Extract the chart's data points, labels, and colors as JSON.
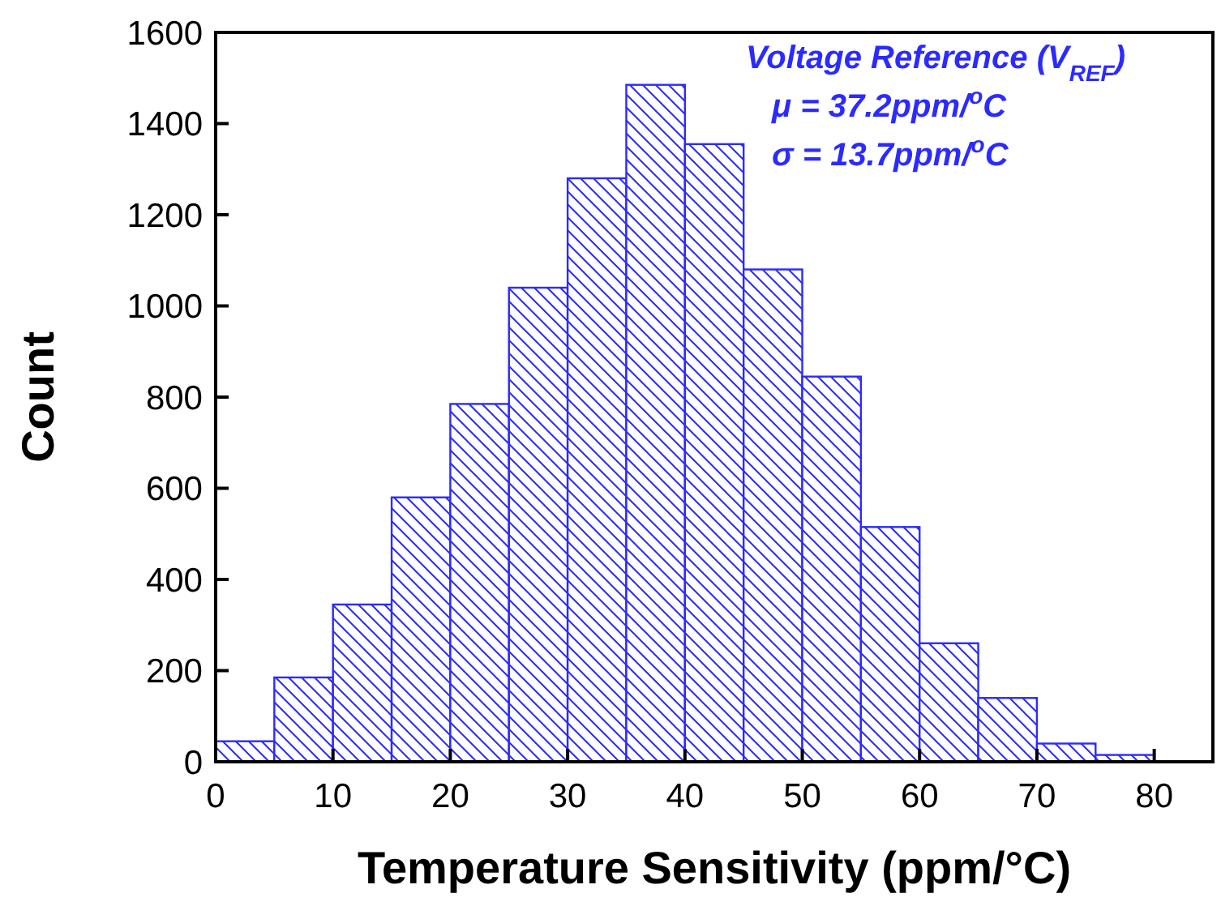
{
  "chart_data": {
    "type": "histogram",
    "xlabel": "Temperature Sensitivity (ppm/°C)",
    "ylabel": "Count",
    "bins": [
      0,
      5,
      10,
      15,
      20,
      25,
      30,
      35,
      40,
      45,
      50,
      55,
      60,
      65,
      70,
      75,
      80
    ],
    "values": [
      45,
      185,
      345,
      580,
      785,
      1040,
      1280,
      1485,
      1355,
      1080,
      845,
      515,
      260,
      140,
      40,
      15
    ],
    "color": "#2b2bff",
    "xlim": [
      0,
      85
    ],
    "xticks": [
      0,
      10,
      20,
      30,
      40,
      50,
      60,
      70,
      80
    ],
    "ylim": [
      0,
      1600
    ],
    "yticks": [
      0,
      200,
      400,
      600,
      800,
      1000,
      1200,
      1400,
      1600
    ],
    "grid": false,
    "annotations": [
      "Voltage Reference (V$_{REF}$)",
      "μ = 37.2ppm/$^{o}$C",
      "σ = 13.7ppm/$^{o}$C"
    ]
  }
}
